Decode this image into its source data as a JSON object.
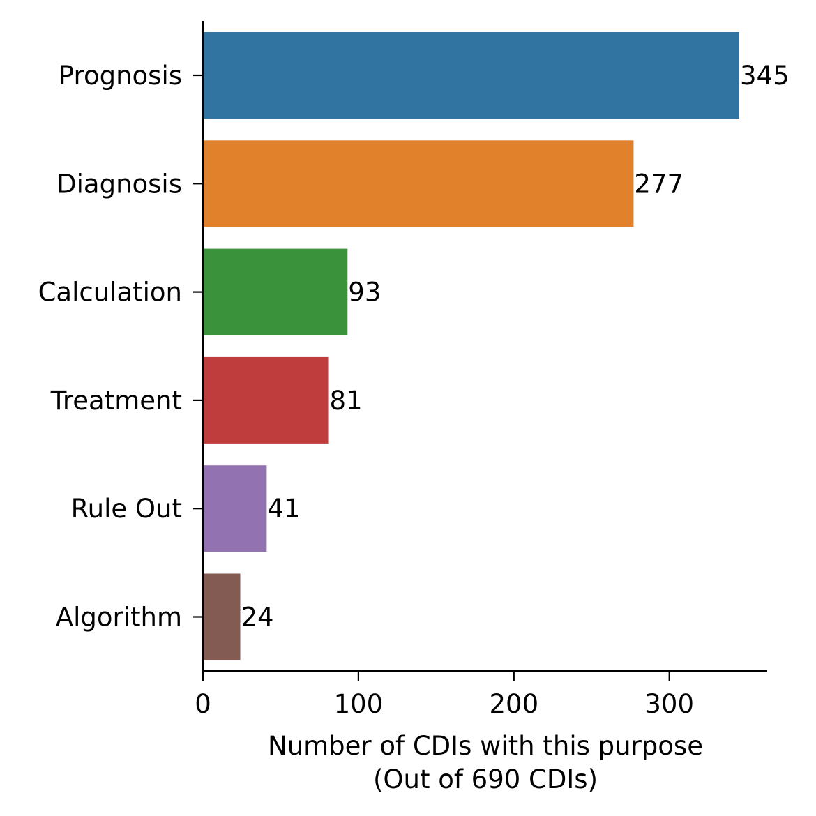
{
  "chart_data": {
    "type": "bar",
    "orientation": "horizontal",
    "categories": [
      "Prognosis",
      "Diagnosis",
      "Calculation",
      "Treatment",
      "Rule Out",
      "Algorithm"
    ],
    "values": [
      345,
      277,
      93,
      81,
      41,
      24
    ],
    "data_labels": [
      "345",
      "277",
      "93",
      "81",
      "41",
      "24"
    ],
    "colors": [
      "#3274a1",
      "#e1812c",
      "#3a923a",
      "#c03d3e",
      "#9372b2",
      "#845b53"
    ],
    "xlabel": {
      "line1": "Number of CDIs with this purpose",
      "line2": "(Out of 690 CDIs)"
    },
    "xticks": [
      0,
      100,
      200,
      300
    ],
    "xtick_labels": [
      "0",
      "100",
      "200",
      "300"
    ],
    "xlim": [
      0,
      362
    ],
    "grid": false,
    "legend": "none",
    "spines": "left-bottom"
  }
}
